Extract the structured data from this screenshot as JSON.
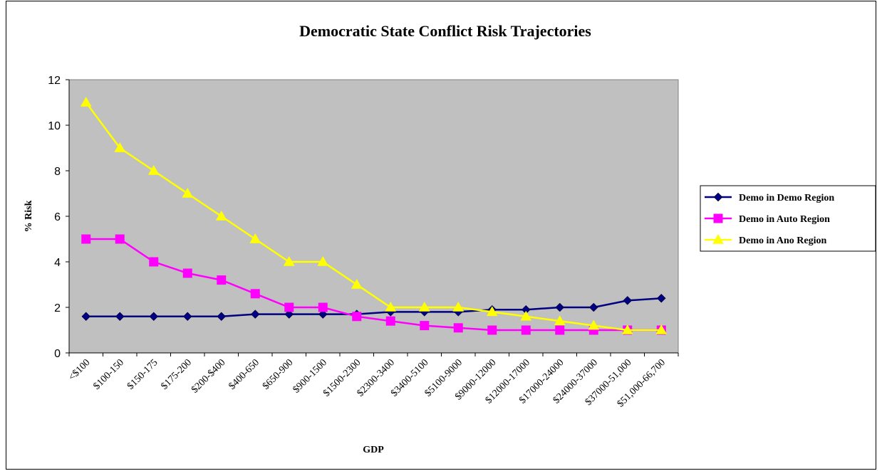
{
  "chart_data": {
    "type": "line",
    "title": "Democratic State Conflict Risk Trajectories",
    "xlabel": "GDP",
    "ylabel": "% Risk",
    "ylim": [
      0,
      12
    ],
    "yticks": [
      0,
      2,
      4,
      6,
      8,
      10,
      12
    ],
    "grid": false,
    "legend_position": "right",
    "plot_background": "#c0c0c0",
    "categories": [
      "<$100",
      "$100-150",
      "$150-175",
      "$175-200",
      "$200-$400",
      "$400-650",
      "$650-900",
      "$900-1500",
      "$1500-2300",
      "$2300-3400",
      "$3400-5100",
      "$5100-9000",
      "$9000-12000",
      "$12000-17000",
      "$17000-24000",
      "$24000-37000",
      "$37000-51,000",
      "$51,000-66,700"
    ],
    "series": [
      {
        "name": "Demo in Demo Region",
        "color": "#000080",
        "marker": "diamond",
        "values": [
          1.6,
          1.6,
          1.6,
          1.6,
          1.6,
          1.7,
          1.7,
          1.7,
          1.7,
          1.8,
          1.8,
          1.8,
          1.9,
          1.9,
          2.0,
          2.0,
          2.3,
          2.4
        ]
      },
      {
        "name": "Demo in Auto Region",
        "color": "#ff00ff",
        "marker": "square",
        "values": [
          5.0,
          5.0,
          4.0,
          3.5,
          3.2,
          2.6,
          2.0,
          2.0,
          1.6,
          1.4,
          1.2,
          1.1,
          1.0,
          1.0,
          1.0,
          1.0,
          1.0,
          1.0
        ]
      },
      {
        "name": "Demo in Ano Region",
        "color": "#ffff00",
        "marker": "triangle",
        "values": [
          11.0,
          9.0,
          8.0,
          7.0,
          6.0,
          5.0,
          4.0,
          4.0,
          3.0,
          2.0,
          2.0,
          2.0,
          1.8,
          1.6,
          1.4,
          1.2,
          1.0,
          1.0
        ]
      }
    ]
  }
}
